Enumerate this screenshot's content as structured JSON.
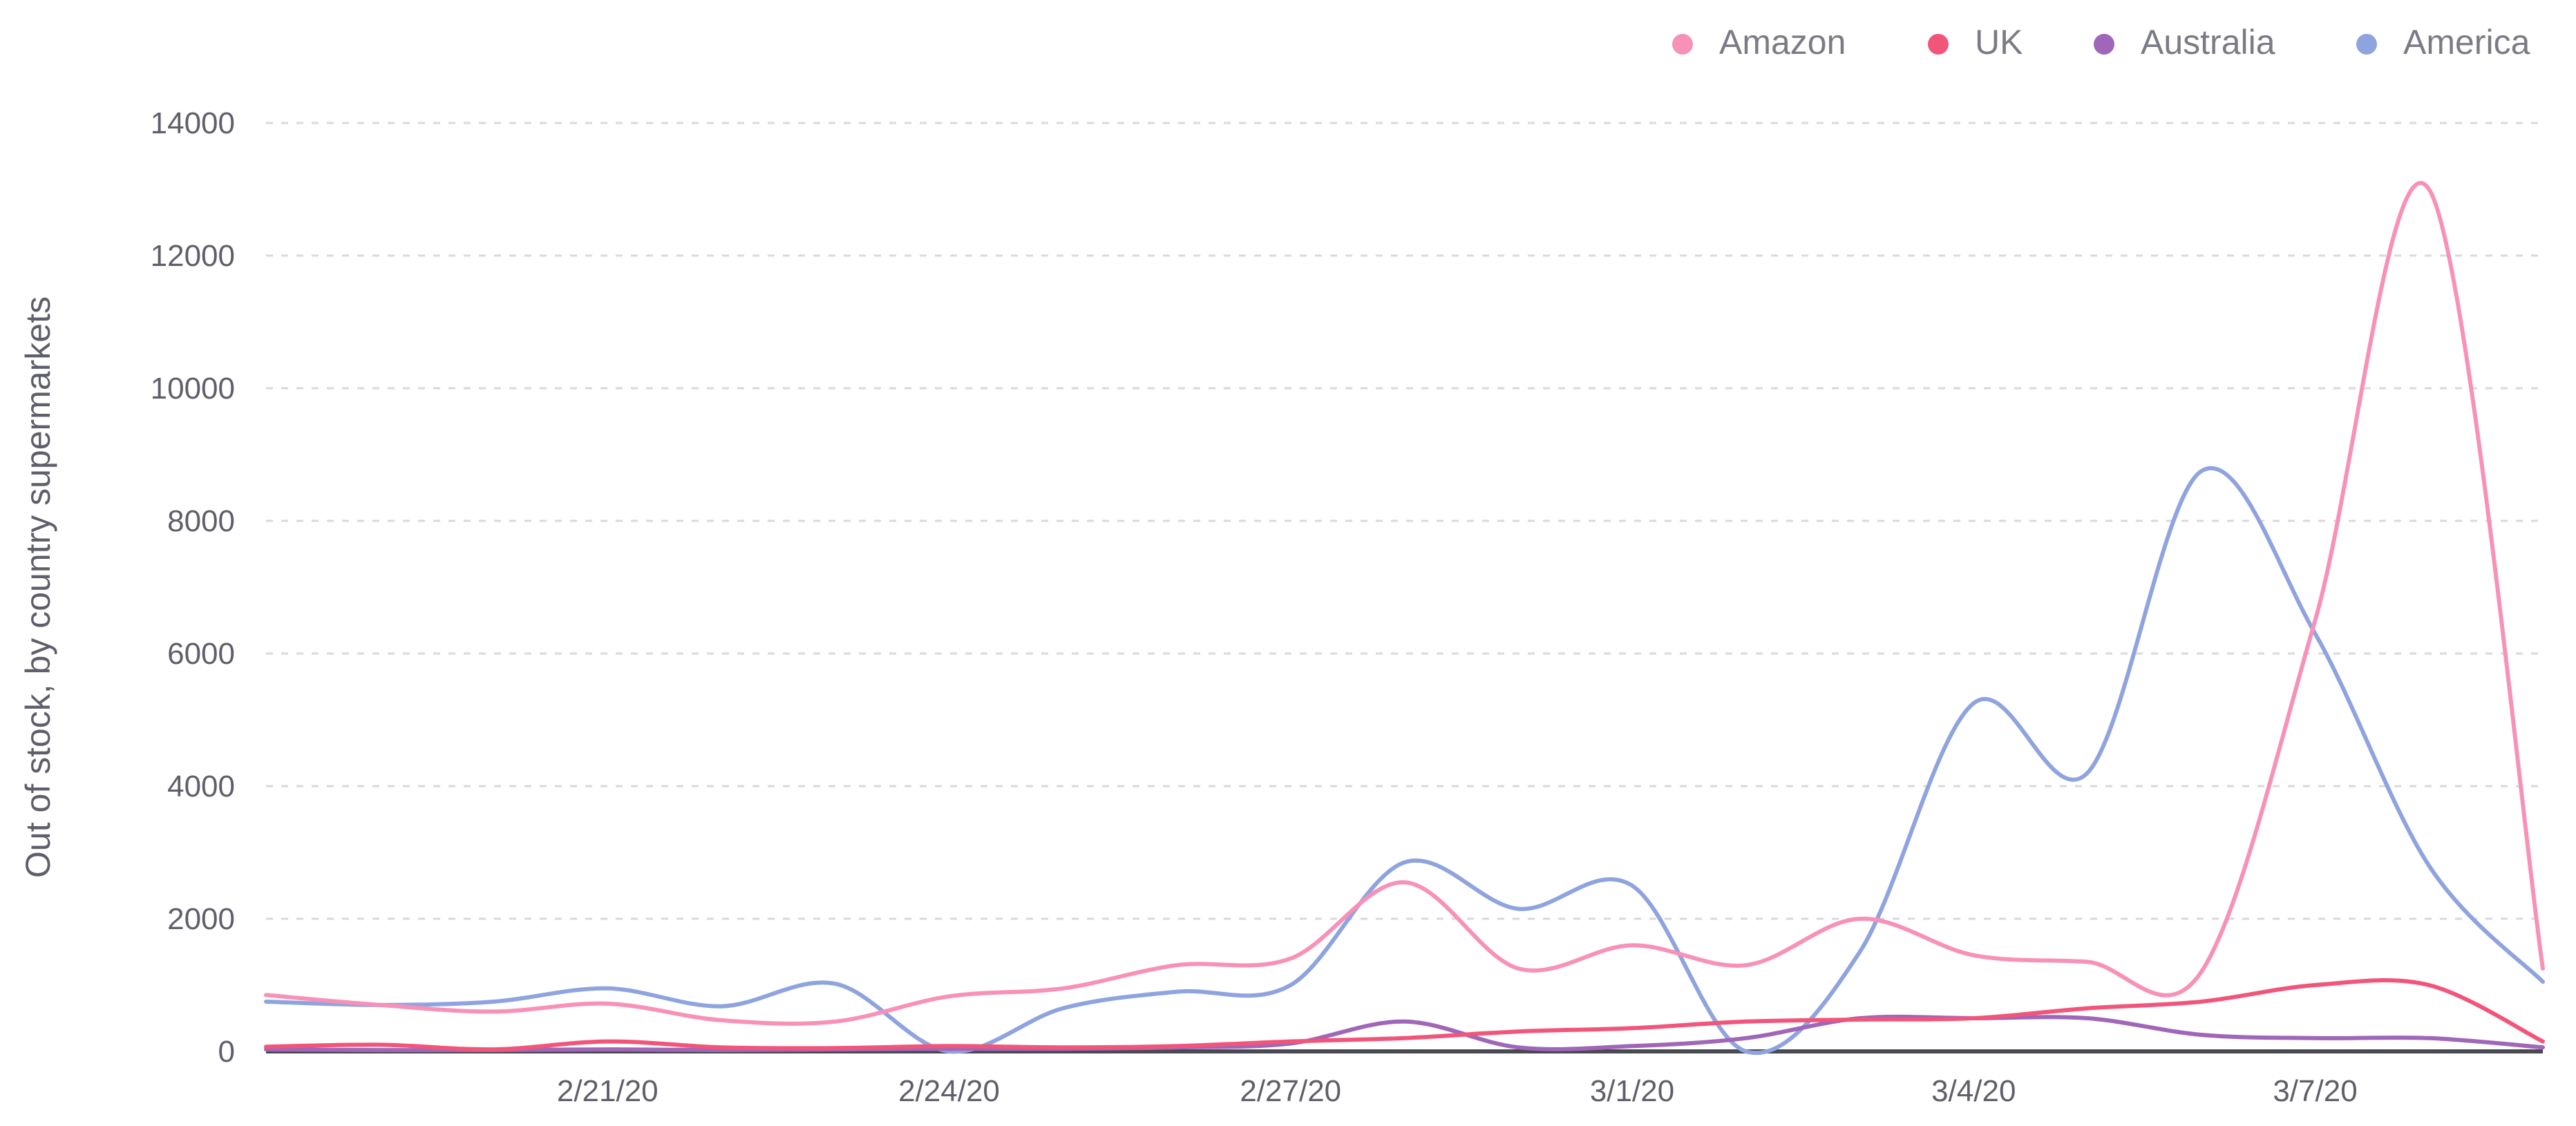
{
  "chart_data": {
    "type": "line",
    "title": "",
    "xlabel": "",
    "ylabel": "Out of stock, by country supermarkets",
    "ylim": [
      0,
      14000
    ],
    "yticks": [
      0,
      2000,
      4000,
      6000,
      8000,
      10000,
      12000,
      14000
    ],
    "x": [
      "2/18/20",
      "2/19/20",
      "2/20/20",
      "2/21/20",
      "2/22/20",
      "2/23/20",
      "2/24/20",
      "2/25/20",
      "2/26/20",
      "2/27/20",
      "2/28/20",
      "2/29/20",
      "3/1/20",
      "3/2/20",
      "3/3/20",
      "3/4/20",
      "3/5/20",
      "3/6/20",
      "3/7/20",
      "3/8/20",
      "3/9/20"
    ],
    "xticks": [
      "2/21/20",
      "2/24/20",
      "2/27/20",
      "3/1/20",
      "3/4/20",
      "3/7/20"
    ],
    "grid": true,
    "legend_position": "top-right",
    "series": [
      {
        "name": "Amazon",
        "color": "#f891b7",
        "values": [
          850,
          700,
          600,
          720,
          470,
          450,
          830,
          950,
          1300,
          1400,
          2550,
          1250,
          1600,
          1300,
          2000,
          1450,
          1350,
          1200,
          6500,
          13000,
          1250
        ]
      },
      {
        "name": "UK",
        "color": "#f2557a",
        "values": [
          70,
          100,
          30,
          150,
          60,
          50,
          80,
          60,
          80,
          150,
          200,
          300,
          350,
          450,
          480,
          500,
          650,
          750,
          1000,
          1000,
          150
        ]
      },
      {
        "name": "Australia",
        "color": "#a066b8",
        "values": [
          30,
          20,
          20,
          30,
          20,
          30,
          40,
          40,
          60,
          120,
          450,
          60,
          80,
          200,
          500,
          500,
          500,
          250,
          200,
          200,
          60
        ]
      },
      {
        "name": "America",
        "color": "#8fa4de",
        "values": [
          750,
          700,
          750,
          950,
          680,
          1020,
          0,
          650,
          900,
          1000,
          2850,
          2150,
          2500,
          0,
          1500,
          5250,
          4200,
          8750,
          6300,
          2800,
          1050
        ]
      }
    ]
  }
}
